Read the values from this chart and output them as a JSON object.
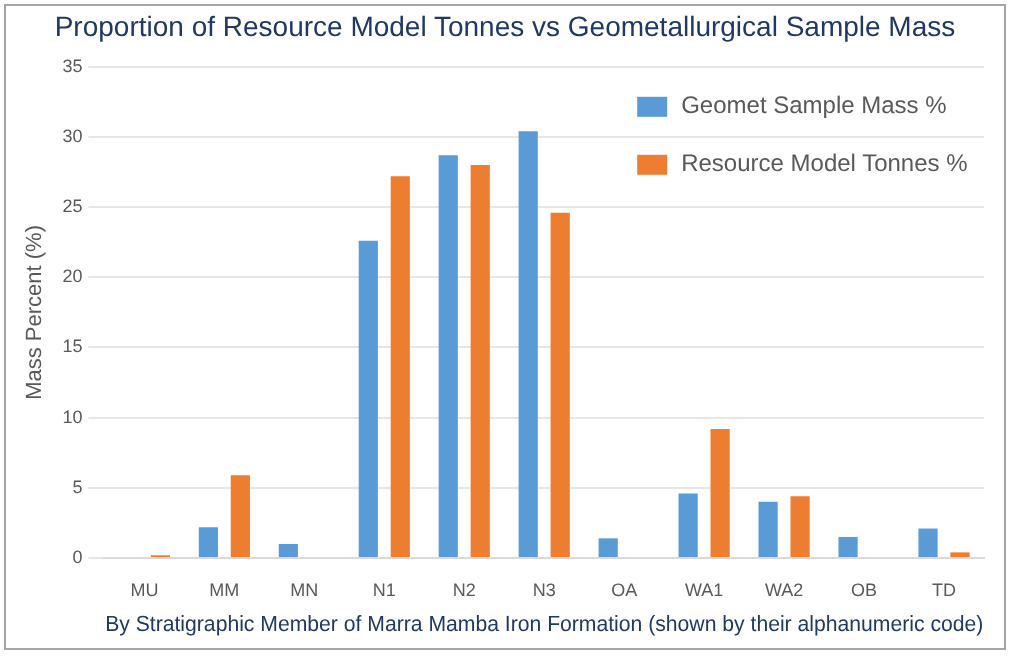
{
  "chart_data": {
    "type": "bar",
    "title": "Proportion of Resource Model Tonnes vs Geometallurgical Sample Mass",
    "xlabel": "By Stratigraphic Member of Marra Mamba Iron Formation (shown by their alphanumeric code)",
    "ylabel": "Mass Percent (%)",
    "categories": [
      "MU",
      "MM",
      "MN",
      "N1",
      "N2",
      "N3",
      "OA",
      "WA1",
      "WA2",
      "OB",
      "TD"
    ],
    "series": [
      {
        "name": "Geomet Sample Mass %",
        "color": "#5b9bd5",
        "values": [
          0,
          2.2,
          1.0,
          22.6,
          28.7,
          30.4,
          1.4,
          4.6,
          4.0,
          1.5,
          2.1
        ]
      },
      {
        "name": "Resource Model Tonnes %",
        "color": "#ed7d31",
        "values": [
          0.2,
          5.9,
          0,
          27.2,
          28.0,
          24.6,
          0,
          9.2,
          4.4,
          0,
          0.4
        ]
      }
    ],
    "ylim": [
      0,
      35
    ],
    "yticks": [
      0,
      5,
      10,
      15,
      20,
      25,
      30,
      35
    ],
    "grid": "y",
    "legend": "top right"
  }
}
